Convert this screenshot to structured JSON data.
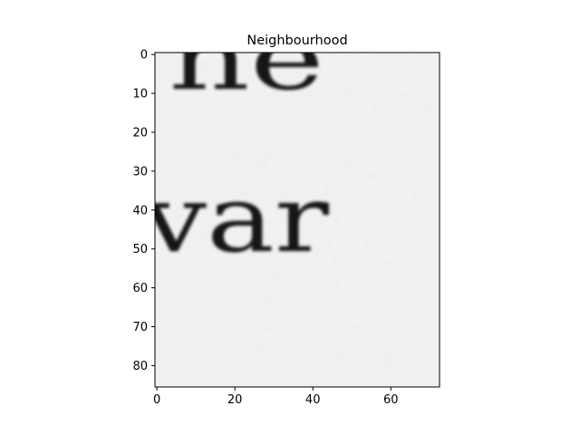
{
  "chart_data": {
    "type": "heatmap",
    "title": "Neighbourhood",
    "xlabel": "",
    "ylabel": "",
    "colormap": "gray",
    "background_value_color": "#f2f2f2",
    "ink_color": "#141414",
    "xlim": [
      -0.5,
      72.5
    ],
    "ylim": [
      85.5,
      -0.5
    ],
    "x_ticks": [
      0,
      20,
      40,
      60
    ],
    "y_ticks": [
      0,
      10,
      20,
      30,
      40,
      50,
      60,
      70,
      80
    ],
    "grid": false,
    "legend": "none",
    "depicted_content": {
      "line1_text_fragment": "he",
      "line2_text_fragment": "var"
    }
  }
}
